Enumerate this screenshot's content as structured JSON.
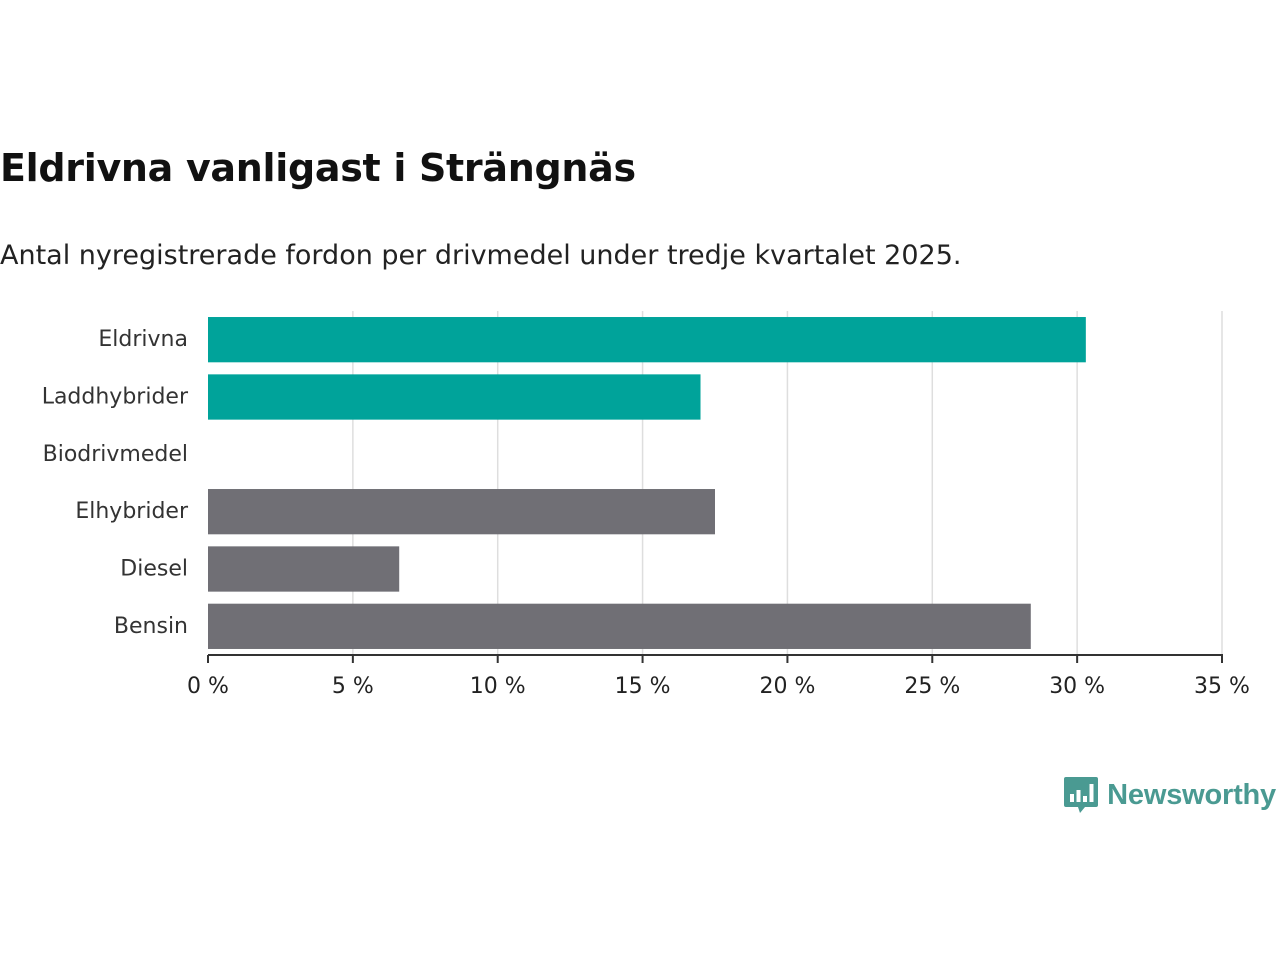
{
  "chart_data": {
    "type": "bar",
    "orientation": "horizontal",
    "title": "Eldrivna vanligast i Strängnäs",
    "subtitle": "Antal nyregistrerade fordon per drivmedel under tredje kvartalet 2025.",
    "categories": [
      "Eldrivna",
      "Laddhybrider",
      "Biodrivmedel",
      "Elhybrider",
      "Diesel",
      "Bensin"
    ],
    "values": [
      30.3,
      17.0,
      0,
      17.5,
      6.6,
      28.4
    ],
    "bar_colors": [
      "#00a39a",
      "#00a39a",
      "#00a39a",
      "#706f75",
      "#706f75",
      "#706f75"
    ],
    "xlim": [
      0,
      35
    ],
    "xticks": [
      0,
      5,
      10,
      15,
      20,
      25,
      30,
      35
    ],
    "xtick_labels": [
      "0 %",
      "5 %",
      "10 %",
      "15 %",
      "20 %",
      "25 %",
      "30 %",
      "35 %"
    ],
    "xlabel": "",
    "ylabel": "",
    "grid": true
  },
  "logo": {
    "text": "Newsworthy",
    "icon": "bar-chart-speech-bubble-icon",
    "color": "#4a9a92"
  }
}
